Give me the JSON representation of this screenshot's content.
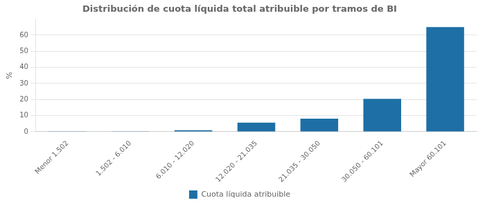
{
  "chart_data": {
    "type": "bar",
    "title": "Distribución de cuota líquida total atribuible por tramos de BI",
    "categories": [
      "Menor 1.502",
      "1.502 - 6.010",
      "6.010 - 12.020",
      "12.020 - 21.035",
      "21.035 - 30.050",
      "30.050 - 60.101",
      "Mayor 60.101"
    ],
    "series": [
      {
        "name": "Cuota líquida atribuible",
        "color": "#1e6fa5",
        "values": [
          0.05,
          0.05,
          1.0,
          5.7,
          8.1,
          20.5,
          65.0
        ]
      }
    ],
    "ylabel": "%",
    "ylim": [
      0,
      70
    ],
    "yticks": [
      0,
      10,
      20,
      30,
      40,
      50,
      60
    ],
    "grid": true,
    "legend": "bottom"
  }
}
